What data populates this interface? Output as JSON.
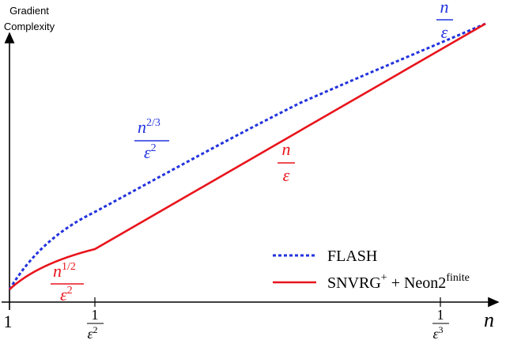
{
  "y_axis_label": [
    "Gradient",
    "Complexity"
  ],
  "x_axis_label": "n",
  "x_ticks": [
    {
      "label": "1"
    },
    {
      "numerator": "1",
      "denominator": "ε",
      "exponent": "2"
    },
    {
      "numerator": "1",
      "denominator": "ε",
      "exponent": "3"
    }
  ],
  "annotations": [
    {
      "numerator": "n",
      "denominator": "ε",
      "color": "blue"
    },
    {
      "numerator": "n",
      "numerator_exponent": "2/3",
      "denominator": "ε",
      "denominator_exponent": "2",
      "color": "blue"
    },
    {
      "numerator": "n",
      "denominator": "ε",
      "color": "red"
    },
    {
      "numerator": "n",
      "numerator_exponent": "1/2",
      "denominator": "ε",
      "denominator_exponent": "2",
      "color": "red"
    }
  ],
  "legend": [
    {
      "label": "FLASH"
    },
    {
      "name": "SNVRG",
      "name_sup": "+",
      "operator": "+",
      "name2": "Neon2",
      "name2_sup": "finite"
    }
  ]
}
